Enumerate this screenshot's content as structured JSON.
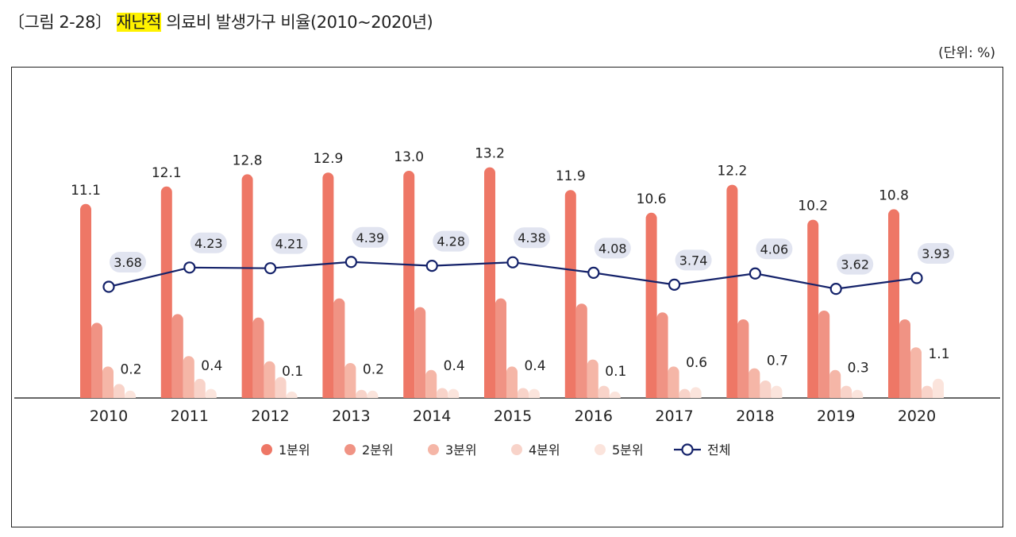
{
  "title": {
    "prefix": "〔그림 2-28〕 ",
    "highlight": "재난적",
    "rest": " 의료비 발생가구 비율(2010~2020년)"
  },
  "unit": "(단위: %)",
  "chart_data": {
    "type": "bar",
    "categories": [
      "2010",
      "2011",
      "2012",
      "2013",
      "2014",
      "2015",
      "2016",
      "2017",
      "2018",
      "2019",
      "2020"
    ],
    "ylim": [
      0,
      14
    ],
    "grid": false,
    "legend_position": "bottom",
    "series": [
      {
        "name": "1분위",
        "type": "bar",
        "color": "#ee7766",
        "labeled": true,
        "values": [
          11.1,
          12.1,
          12.8,
          12.9,
          13.0,
          13.2,
          11.9,
          10.6,
          12.2,
          10.2,
          10.8
        ]
      },
      {
        "name": "2분위",
        "type": "bar",
        "color": "#f09384",
        "labeled": false,
        "values": [
          4.3,
          4.8,
          4.6,
          5.7,
          5.2,
          5.7,
          5.4,
          4.9,
          4.5,
          5.0,
          4.5
        ]
      },
      {
        "name": "3분위",
        "type": "bar",
        "color": "#f5b6a7",
        "labeled": false,
        "values": [
          1.8,
          2.4,
          2.1,
          2.0,
          1.6,
          1.8,
          2.2,
          1.8,
          1.7,
          1.6,
          2.9
        ]
      },
      {
        "name": "4분위",
        "type": "bar",
        "color": "#f8d3c9",
        "labeled": false,
        "values": [
          0.8,
          1.1,
          1.2,
          0.3,
          0.5,
          0.5,
          0.7,
          0.4,
          1.0,
          0.7,
          0.7
        ]
      },
      {
        "name": "5분위",
        "type": "bar",
        "color": "#fbe4dc",
        "labeled": true,
        "values": [
          0.2,
          0.4,
          0.1,
          0.2,
          0.4,
          0.4,
          0.1,
          0.6,
          0.7,
          0.3,
          1.1
        ]
      },
      {
        "name": "전체",
        "type": "line",
        "color": "#14226a",
        "labeled": true,
        "values": [
          3.68,
          4.23,
          4.21,
          4.39,
          4.28,
          4.38,
          4.08,
          3.74,
          4.06,
          3.62,
          3.93
        ]
      }
    ]
  }
}
